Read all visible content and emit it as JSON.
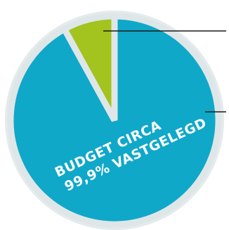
{
  "chart_data": {
    "type": "pie",
    "slices": [
      {
        "value": 92,
        "color": "#0fa8c9"
      },
      {
        "value": 8,
        "color": "#a3c31f"
      }
    ],
    "gap_color": "#dfe6e8",
    "label_lines": [
      "BUDGET CIRCA",
      "99,9% VASTGELEGD"
    ]
  }
}
